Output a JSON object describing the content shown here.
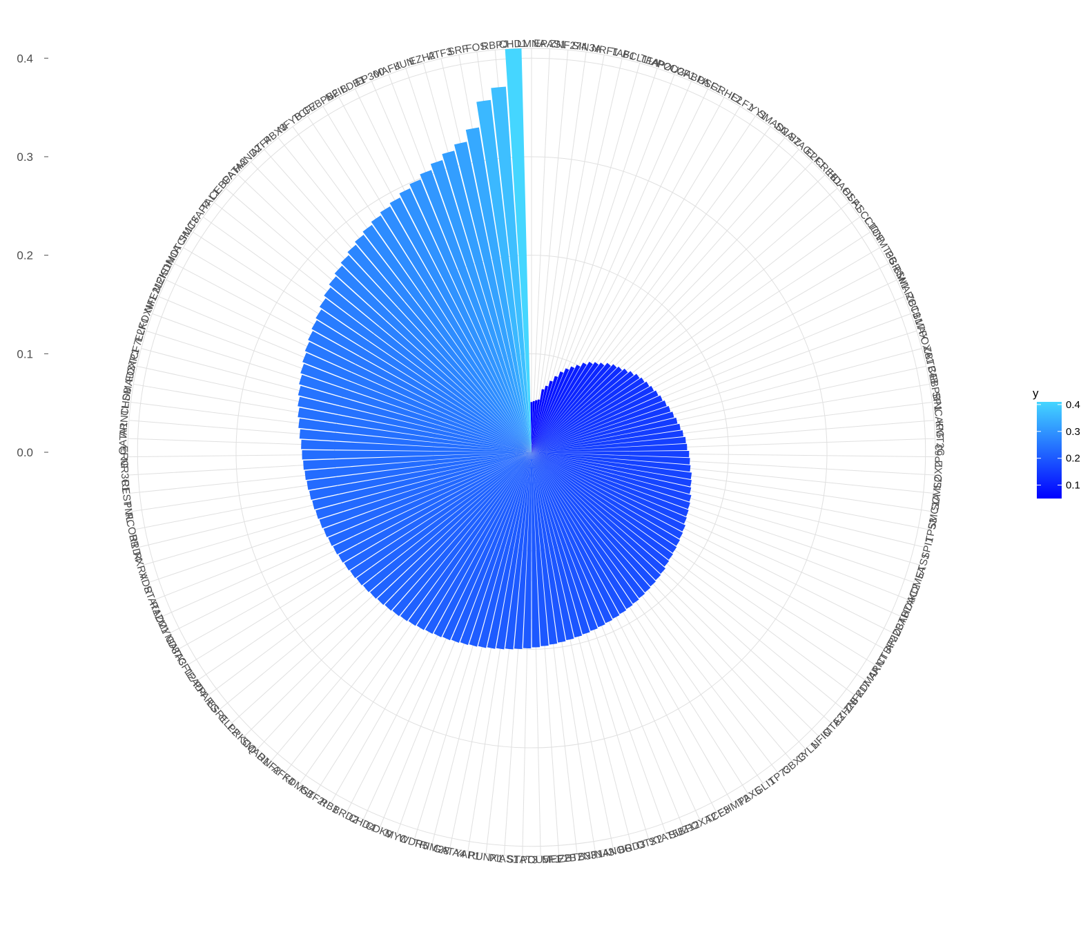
{
  "chart_data": {
    "type": "bar",
    "coordinate_system": "polar",
    "ylim": [
      0,
      0.41
    ],
    "y_ticks": [
      "0.0",
      "0.1",
      "0.2",
      "0.3",
      "0.4"
    ],
    "y_tick_values": [
      0,
      0.1,
      0.2,
      0.3,
      0.4
    ],
    "highlight_category": "LMNA",
    "highlight_color": "#ff0000",
    "label_color": "#4d4d4d",
    "grid": true,
    "color_scale": {
      "low": "#0000ff",
      "high": "#45d6ff"
    },
    "legend": {
      "title": "y",
      "ticks": [
        "0.1",
        "0.2",
        "0.3",
        "0.4"
      ],
      "tick_values": [
        0.1,
        0.2,
        0.3,
        0.4
      ],
      "min": 0.05,
      "max": 0.41,
      "placement": "right"
    },
    "categories": [
      "LMNA",
      "EPAS1",
      "ZNF274",
      "SIN3A",
      "NRF1",
      "TAF1",
      "BCL11A",
      "TFAP2C",
      "POU2F1",
      "GABPA",
      "USF1",
      "GRHL2",
      "ELF1",
      "YY1",
      "SMAD2",
      "SNAI2",
      "STAG1",
      "E2F1",
      "CREB1",
      "HDAC1",
      "HSF1",
      "ASCL1",
      "CTCF",
      "DNMT3B",
      "PGR",
      "BMI1",
      "SMARCC1",
      "ZBTB17",
      "MAX",
      "FOXA1",
      "ZBTB48",
      "CEBPB",
      "SP1",
      "NCAPG",
      "KMT2C",
      "TP63",
      "SOX2",
      "SCML2",
      "SMC1A",
      "TP53",
      "SPI1",
      "ETS1",
      "KDM5A",
      "HDAC2",
      "ZBTB7A",
      "ARID3A",
      "CTBP2",
      "ARNT",
      "KDM4A",
      "ZNF217",
      "EZH2B",
      "MTA3",
      "NFIC",
      "LYL1",
      "CBX3",
      "TP73",
      "GLI1",
      "PAX5",
      "EHMT2",
      "TCF3",
      "FOXA2",
      "SUZ12",
      "STAT5B",
      "OTX2",
      "BRD3",
      "NANOG",
      "ZNF143",
      "ZBTB33",
      "MEF2B",
      "POU5F1",
      "STAT3",
      "PIAS1",
      "RUNX1",
      "YAP1",
      "GATA4",
      "TRIM28",
      "WDR5",
      "MYC",
      "CDK9",
      "CHD4",
      "BRD2",
      "RB1",
      "GTF2I",
      "KDM5B",
      "AFF4",
      "RNF2",
      "SMAD1",
      "PRKCQ",
      "ELL2",
      "ESR1",
      "PPARG",
      "TEAD4",
      "TCF12",
      "GATA3",
      "ZMYND8",
      "RAD21",
      "STAT1",
      "VDR",
      "RXRA",
      "BRD4",
      "RCOR1",
      "PML",
      "REST",
      "NR3C1",
      "ERG",
      "GATA1",
      "ARNTL",
      "CHD8",
      "SMAD3",
      "FOXP1",
      "TCF7L2",
      "ELK1",
      "FOXM1",
      "NFE2L2",
      "MEIS1",
      "KDM1A",
      "NOTCH1",
      "SMC3",
      "TFAP4",
      "TAL1",
      "CEBPA",
      "GATA2",
      "HAND2",
      "ATF4",
      "PBX3",
      "NFYB",
      "TCF7",
      "CEBPB2",
      "NFIB",
      "LDB1",
      "EP300",
      "MAFK",
      "JUN",
      "EZH2",
      "ATF3",
      "SRF",
      "FOS",
      "RBPJ",
      "CHD1"
    ],
    "values": [
      0.051,
      0.052,
      0.053,
      0.054,
      0.065,
      0.069,
      0.075,
      0.081,
      0.087,
      0.092,
      0.096,
      0.1,
      0.105,
      0.109,
      0.112,
      0.115,
      0.119,
      0.122,
      0.124,
      0.127,
      0.13,
      0.133,
      0.135,
      0.137,
      0.139,
      0.141,
      0.143,
      0.145,
      0.147,
      0.149,
      0.151,
      0.153,
      0.155,
      0.157,
      0.158,
      0.16,
      0.161,
      0.162,
      0.164,
      0.165,
      0.166,
      0.168,
      0.169,
      0.17,
      0.171,
      0.173,
      0.174,
      0.175,
      0.176,
      0.177,
      0.178,
      0.18,
      0.181,
      0.182,
      0.183,
      0.184,
      0.185,
      0.186,
      0.187,
      0.188,
      0.189,
      0.19,
      0.191,
      0.192,
      0.193,
      0.194,
      0.195,
      0.196,
      0.197,
      0.198,
      0.199,
      0.2,
      0.201,
      0.202,
      0.203,
      0.204,
      0.205,
      0.206,
      0.207,
      0.208,
      0.209,
      0.21,
      0.211,
      0.212,
      0.213,
      0.214,
      0.215,
      0.216,
      0.217,
      0.218,
      0.219,
      0.22,
      0.221,
      0.222,
      0.223,
      0.224,
      0.225,
      0.226,
      0.227,
      0.228,
      0.229,
      0.23,
      0.231,
      0.232,
      0.233,
      0.234,
      0.236,
      0.238,
      0.24,
      0.242,
      0.244,
      0.246,
      0.248,
      0.25,
      0.252,
      0.254,
      0.256,
      0.258,
      0.261,
      0.264,
      0.267,
      0.27,
      0.273,
      0.276,
      0.279,
      0.282,
      0.285,
      0.288,
      0.291,
      0.295,
      0.299,
      0.304,
      0.31,
      0.316,
      0.322,
      0.334,
      0.36,
      0.372,
      0.41
    ]
  }
}
